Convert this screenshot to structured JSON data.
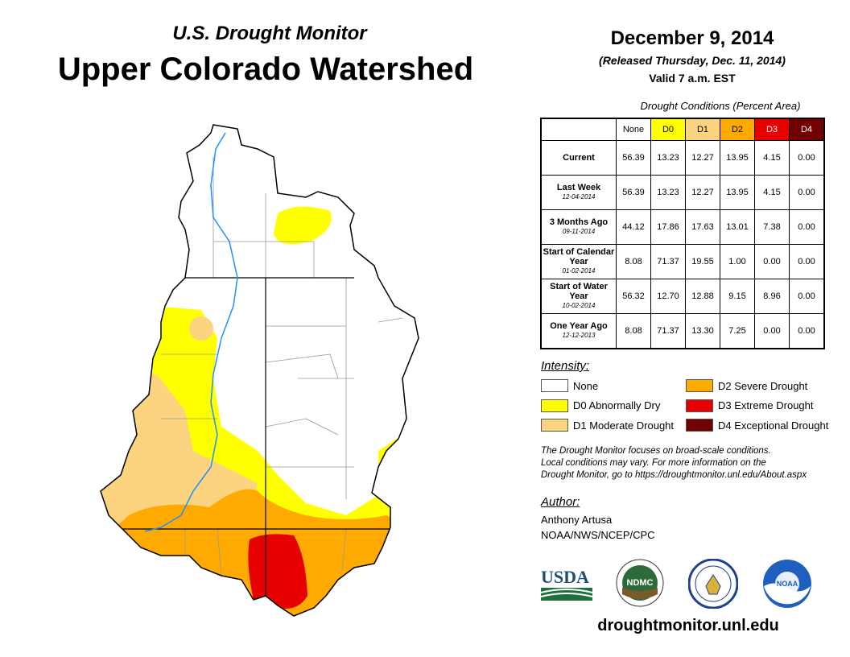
{
  "header": {
    "subtitle": "U.S. Drought Monitor",
    "title": "Upper Colorado Watershed"
  },
  "date": {
    "main": "December 9, 2014",
    "released": "(Released Thursday, Dec. 11, 2014)",
    "valid": "Valid 7 a.m. EST"
  },
  "table": {
    "caption": "Drought Conditions (Percent Area)",
    "columns": [
      "None",
      "D0",
      "D1",
      "D2",
      "D3",
      "D4"
    ],
    "column_colors": [
      "#ffffff",
      "#ffff00",
      "#fcd37f",
      "#ffaa00",
      "#e60000",
      "#730000"
    ],
    "column_text_colors": [
      "#000000",
      "#000000",
      "#000000",
      "#000000",
      "#ffffff",
      "#ffffff"
    ],
    "rows": [
      {
        "label": "Current",
        "date": "",
        "values": [
          "56.39",
          "13.23",
          "12.27",
          "13.95",
          "4.15",
          "0.00"
        ]
      },
      {
        "label": "Last Week",
        "date": "12-04-2014",
        "values": [
          "56.39",
          "13.23",
          "12.27",
          "13.95",
          "4.15",
          "0.00"
        ]
      },
      {
        "label": "3 Months Ago",
        "date": "09-11-2014",
        "values": [
          "44.12",
          "17.86",
          "17.63",
          "13.01",
          "7.38",
          "0.00"
        ]
      },
      {
        "label": "Start of Calendar Year",
        "date": "01-02-2014",
        "values": [
          "8.08",
          "71.37",
          "19.55",
          "1.00",
          "0.00",
          "0.00"
        ]
      },
      {
        "label": "Start of Water Year",
        "date": "10-02-2014",
        "values": [
          "56.32",
          "12.70",
          "12.88",
          "9.15",
          "8.96",
          "0.00"
        ]
      },
      {
        "label": "One Year Ago",
        "date": "12-12-2013",
        "values": [
          "8.08",
          "71.37",
          "13.30",
          "7.25",
          "0.00",
          "0.00"
        ]
      }
    ]
  },
  "legend": {
    "title": "Intensity:",
    "items": [
      {
        "label": "None",
        "color": "#ffffff"
      },
      {
        "label": "D0 Abnormally Dry",
        "color": "#ffff00"
      },
      {
        "label": "D1 Moderate Drought",
        "color": "#fcd37f"
      },
      {
        "label": "D2 Severe Drought",
        "color": "#ffaa00"
      },
      {
        "label": "D3 Extreme Drought",
        "color": "#e60000"
      },
      {
        "label": "D4 Exceptional Drought",
        "color": "#730000"
      }
    ]
  },
  "note": [
    "The Drought Monitor focuses on broad-scale conditions.",
    "Local conditions may vary. For more information on the",
    "Drought Monitor, go to https://droughtmonitor.unl.edu/About.aspx"
  ],
  "author": {
    "title": "Author:",
    "name": "Anthony Artusa",
    "org": "NOAA/NWS/NCEP/CPC"
  },
  "logos": {
    "usda": "USDA",
    "ndmc": "NDMC",
    "noaa": "NOAA"
  },
  "footer": {
    "url": "droughtmonitor.unl.edu"
  }
}
